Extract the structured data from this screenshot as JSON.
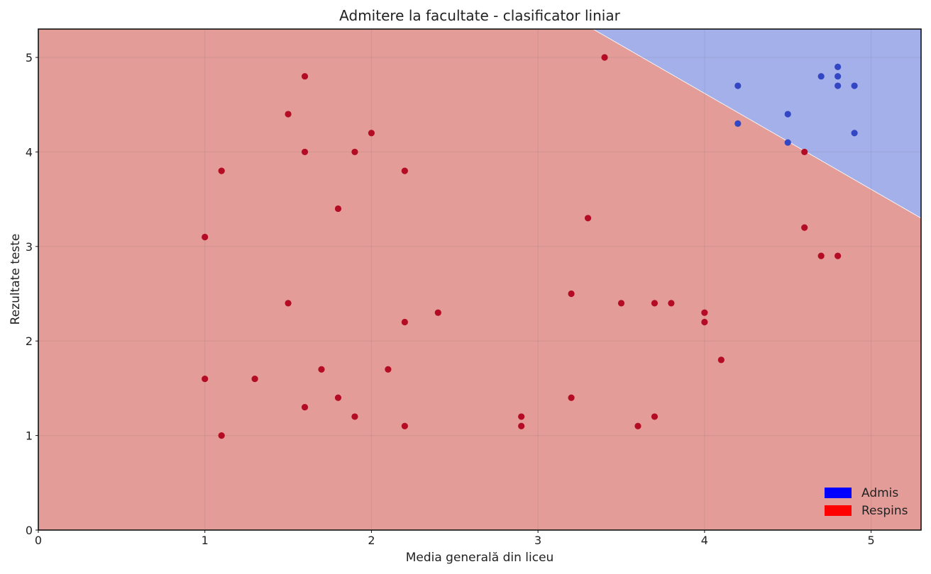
{
  "chart_data": {
    "type": "scatter",
    "title": "Admitere la facultate - clasificator liniar",
    "xlabel": "Media generală din liceu",
    "ylabel": "Rezultate teste",
    "xlim": [
      0,
      5.3
    ],
    "ylim": [
      0,
      5.3
    ],
    "xticks": [
      0,
      1,
      2,
      3,
      4,
      5
    ],
    "yticks": [
      0,
      1,
      2,
      3,
      4,
      5
    ],
    "grid": true,
    "legend_position": "bottom-right",
    "decision_boundary": [
      [
        3.33,
        5.3
      ],
      [
        5.3,
        3.3
      ]
    ],
    "regions": [
      {
        "name": "Admis",
        "side": "above",
        "color": "#a4b0ea"
      },
      {
        "name": "Respins",
        "side": "below",
        "color": "#e39c98"
      }
    ],
    "legend": [
      {
        "label": "Admis",
        "color": "#0000ff"
      },
      {
        "label": "Respins",
        "color": "#ff0000"
      }
    ],
    "series": [
      {
        "name": "Admis",
        "color": "#3347c4",
        "points": [
          [
            4.2,
            4.7
          ],
          [
            4.2,
            4.3
          ],
          [
            4.5,
            4.4
          ],
          [
            4.5,
            4.1
          ],
          [
            4.7,
            4.8
          ],
          [
            4.8,
            4.9
          ],
          [
            4.8,
            4.8
          ],
          [
            4.8,
            4.7
          ],
          [
            4.9,
            4.7
          ],
          [
            4.9,
            4.2
          ]
        ]
      },
      {
        "name": "Respins",
        "color": "#b30c24",
        "points": [
          [
            1.0,
            3.1
          ],
          [
            1.0,
            1.6
          ],
          [
            1.1,
            3.8
          ],
          [
            1.1,
            1.0
          ],
          [
            1.3,
            1.6
          ],
          [
            1.5,
            4.4
          ],
          [
            1.5,
            2.4
          ],
          [
            1.6,
            4.8
          ],
          [
            1.6,
            4.0
          ],
          [
            1.6,
            1.3
          ],
          [
            1.7,
            1.7
          ],
          [
            1.8,
            3.4
          ],
          [
            1.8,
            1.4
          ],
          [
            1.9,
            4.0
          ],
          [
            1.9,
            1.2
          ],
          [
            2.0,
            4.2
          ],
          [
            2.1,
            1.7
          ],
          [
            2.2,
            3.8
          ],
          [
            2.2,
            2.2
          ],
          [
            2.2,
            1.1
          ],
          [
            2.4,
            2.3
          ],
          [
            2.9,
            1.2
          ],
          [
            2.9,
            1.1
          ],
          [
            3.2,
            2.5
          ],
          [
            3.2,
            1.4
          ],
          [
            3.3,
            3.3
          ],
          [
            3.4,
            5.0
          ],
          [
            3.5,
            2.4
          ],
          [
            3.6,
            1.1
          ],
          [
            3.7,
            2.4
          ],
          [
            3.7,
            1.2
          ],
          [
            3.8,
            2.4
          ],
          [
            4.0,
            2.3
          ],
          [
            4.0,
            2.2
          ],
          [
            4.1,
            1.8
          ],
          [
            4.6,
            4.0
          ],
          [
            4.6,
            3.2
          ],
          [
            4.7,
            2.9
          ],
          [
            4.8,
            2.9
          ]
        ]
      }
    ]
  }
}
